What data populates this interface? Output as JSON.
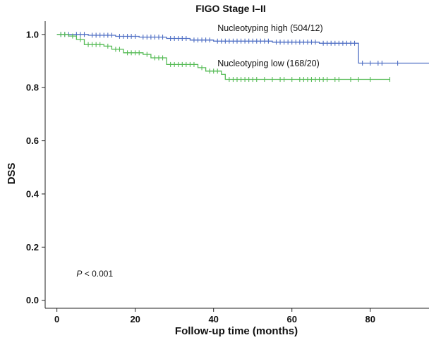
{
  "chart_data": {
    "type": "line",
    "title": "FIGO Stage I–II",
    "xlabel": "Follow-up time (months)",
    "ylabel": "DSS",
    "xlim": [
      -3,
      95
    ],
    "ylim": [
      -0.03,
      1.05
    ],
    "xticks": [
      0,
      20,
      40,
      60,
      80
    ],
    "yticks": [
      0.0,
      0.2,
      0.4,
      0.6,
      0.8,
      1.0
    ],
    "ytick_labels": [
      "0.0",
      "0.2",
      "0.4",
      "0.6",
      "0.8",
      "1.0"
    ],
    "grid": false,
    "annotation": {
      "italic": "P",
      "rest": " < 0.001",
      "x": 5,
      "y": 0.1
    },
    "series": [
      {
        "name": "Nucleotyping high (504/12)",
        "color": "#4f6fc4",
        "label_x": 41,
        "label_y": 1.0,
        "steps": [
          [
            0,
            1.0
          ],
          [
            8,
            0.997
          ],
          [
            15,
            0.993
          ],
          [
            21,
            0.99
          ],
          [
            28,
            0.985
          ],
          [
            34,
            0.979
          ],
          [
            40,
            0.975
          ],
          [
            55,
            0.971
          ],
          [
            67,
            0.967
          ],
          [
            77,
            0.892
          ],
          [
            95,
            0.892
          ]
        ],
        "censors": [
          1,
          2,
          3,
          5,
          6,
          7,
          9,
          10,
          11,
          12,
          13,
          14,
          16,
          17,
          18,
          19,
          20,
          22,
          23,
          24,
          25,
          26,
          27,
          29,
          30,
          31,
          32,
          33,
          35,
          36,
          37,
          38,
          39,
          41,
          42,
          43,
          44,
          45,
          46,
          47,
          48,
          49,
          50,
          51,
          52,
          53,
          54,
          56,
          57,
          58,
          59,
          60,
          61,
          62,
          63,
          64,
          65,
          66,
          68,
          69,
          70,
          71,
          72,
          73,
          74,
          75,
          76,
          78,
          80,
          82,
          83,
          87
        ]
      },
      {
        "name": "Nucleotyping low (168/20)",
        "color": "#55bb55",
        "label_x": 41,
        "label_y": 0.867,
        "steps": [
          [
            0,
            1.0
          ],
          [
            3,
            0.994
          ],
          [
            5,
            0.981
          ],
          [
            7,
            0.962
          ],
          [
            12,
            0.956
          ],
          [
            14,
            0.944
          ],
          [
            17,
            0.931
          ],
          [
            22,
            0.925
          ],
          [
            24,
            0.912
          ],
          [
            28,
            0.887
          ],
          [
            36,
            0.875
          ],
          [
            38,
            0.862
          ],
          [
            42,
            0.85
          ],
          [
            43,
            0.831
          ],
          [
            85,
            0.831
          ]
        ],
        "censors": [
          1,
          2,
          4,
          6,
          8,
          9,
          10,
          11,
          13,
          15,
          16,
          18,
          19,
          20,
          21,
          23,
          25,
          26,
          27,
          29,
          30,
          31,
          32,
          33,
          34,
          35,
          37,
          39,
          40,
          41,
          44,
          45,
          46,
          47,
          48,
          49,
          50,
          51,
          53,
          55,
          57,
          58,
          60,
          62,
          63,
          64,
          65,
          66,
          67,
          68,
          69,
          71,
          72,
          75,
          77,
          80,
          85
        ]
      }
    ]
  }
}
